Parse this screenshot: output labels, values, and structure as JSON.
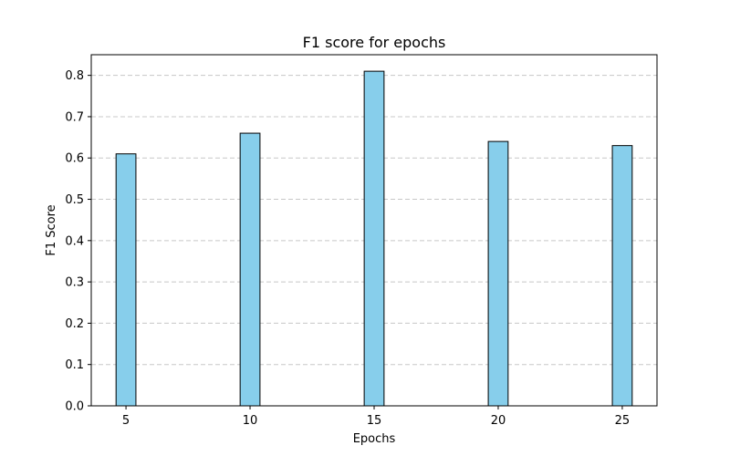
{
  "chart_data": {
    "type": "bar",
    "title": "F1 score for epochs",
    "xlabel": "Epochs",
    "ylabel": "F1 Score",
    "x": [
      5,
      10,
      15,
      20,
      25
    ],
    "values": [
      0.61,
      0.66,
      0.81,
      0.64,
      0.63
    ],
    "xlim": [
      3.6,
      26.4
    ],
    "ylim": [
      0.0,
      0.85
    ],
    "xticks": [
      5,
      10,
      15,
      20,
      25
    ],
    "yticks": [
      0.0,
      0.1,
      0.2,
      0.3,
      0.4,
      0.5,
      0.6,
      0.7,
      0.8
    ],
    "ytick_labels": [
      "0.0",
      "0.1",
      "0.2",
      "0.3",
      "0.4",
      "0.5",
      "0.6",
      "0.7",
      "0.8"
    ],
    "bar_color": "#87ceeb",
    "bar_edge_color": "#000000",
    "grid": "y-dashed",
    "legend": "none"
  }
}
